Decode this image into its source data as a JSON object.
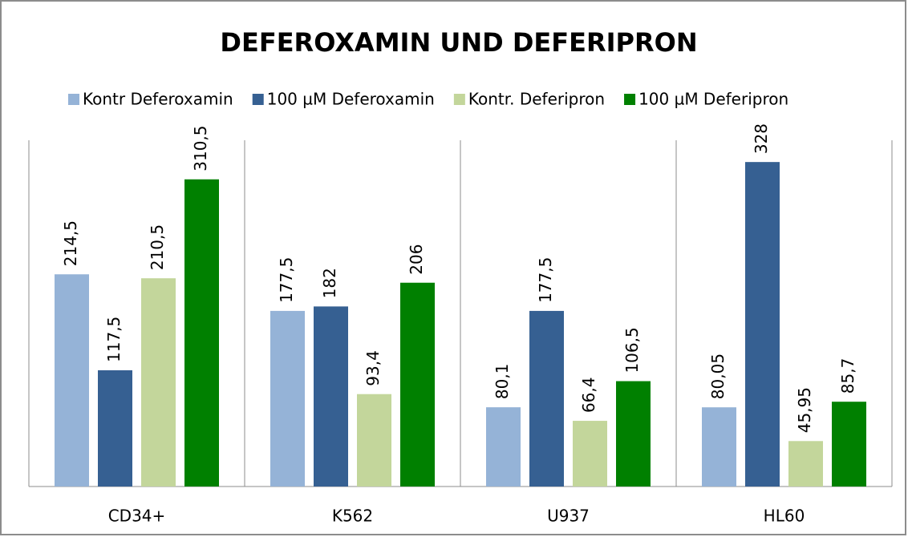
{
  "chart_data": {
    "type": "bar",
    "title": "DEFEROXAMIN UND DEFERIPRON",
    "categories": [
      "CD34+",
      "K562",
      "U937",
      "HL60"
    ],
    "series": [
      {
        "name": "Kontr Deferoxamin",
        "color": "#95b3d7",
        "values": [
          214.5,
          177.5,
          80.1,
          80.05
        ],
        "value_labels": [
          "214,5",
          "177,5",
          "80,1",
          "80,05"
        ]
      },
      {
        "name": "100 µM Deferoxamin",
        "color": "#366092",
        "values": [
          117.5,
          182,
          177.5,
          328
        ],
        "value_labels": [
          "117,5",
          "182",
          "177,5",
          "328"
        ]
      },
      {
        "name": "Kontr. Deferipron",
        "color": "#c3d69b",
        "values": [
          210.5,
          93.4,
          66.4,
          45.95
        ],
        "value_labels": [
          "210,5",
          "93,4",
          "66,4",
          "45,95"
        ]
      },
      {
        "name": "100 µM Deferipron",
        "color": "#008000",
        "values": [
          310.5,
          206,
          106.5,
          85.7
        ],
        "value_labels": [
          "310,5",
          "206",
          "106,5",
          "85,7"
        ]
      }
    ],
    "ylim": [
      0,
      350
    ],
    "legend": "top"
  }
}
